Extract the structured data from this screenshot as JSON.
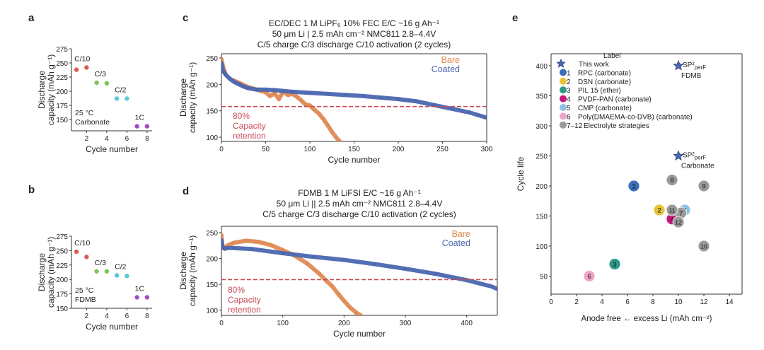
{
  "colors": {
    "bare": "#e08a55",
    "coated": "#4a67b0",
    "ref": "#c74a55",
    "ink": "#222222",
    "axis": "#333333",
    "c10": "#e05a4f",
    "c3": "#7cc45a",
    "c2": "#5cc7d6",
    "c1": "#a44bc7"
  },
  "chart_data": [
    {
      "id": "a",
      "panel_label": "a",
      "type": "scatter",
      "xlabel": "Cycle number",
      "ylabel_line1": "Discharge",
      "ylabel_line2": "capacity (mAh g⁻¹)",
      "xlim": [
        0.5,
        8.5
      ],
      "ylim": [
        130,
        275
      ],
      "xticks": [
        2,
        4,
        6,
        8
      ],
      "yticks": [
        150,
        175,
        200,
        225,
        250,
        275
      ],
      "note_line1": "25 °C",
      "note_line2": "Carbonate",
      "series": [
        {
          "name": "C/10",
          "color": "c10",
          "x": [
            1,
            2
          ],
          "y": [
            238,
            242
          ]
        },
        {
          "name": "C/3",
          "color": "c3",
          "x": [
            3,
            4
          ],
          "y": [
            215,
            214
          ]
        },
        {
          "name": "C/2",
          "color": "c2",
          "x": [
            5,
            6
          ],
          "y": [
            187,
            187
          ]
        },
        {
          "name": "1C",
          "color": "c1",
          "x": [
            7,
            8
          ],
          "y": [
            138,
            138
          ]
        }
      ]
    },
    {
      "id": "b",
      "panel_label": "b",
      "type": "scatter",
      "xlabel": "Cycle number",
      "ylabel_line1": "Discharge",
      "ylabel_line2": "capacity (mAh g⁻¹)",
      "xlim": [
        0.5,
        8.5
      ],
      "ylim": [
        150,
        275
      ],
      "xticks": [
        2,
        4,
        6,
        8
      ],
      "yticks": [
        150,
        175,
        200,
        225,
        250,
        275
      ],
      "note_line1": "25 °C",
      "note_line2": "FDMB",
      "series": [
        {
          "name": "C/10",
          "color": "c10",
          "x": [
            1,
            2
          ],
          "y": [
            248,
            239
          ]
        },
        {
          "name": "C/3",
          "color": "c3",
          "x": [
            3,
            4
          ],
          "y": [
            214,
            214
          ]
        },
        {
          "name": "C/2",
          "color": "c2",
          "x": [
            5,
            6
          ],
          "y": [
            207,
            206
          ]
        },
        {
          "name": "1C",
          "color": "c1",
          "x": [
            7,
            8
          ],
          "y": [
            169,
            169
          ]
        }
      ]
    },
    {
      "id": "c",
      "panel_label": "c",
      "type": "line",
      "title_line1": "EC/DEC 1 M LiPF₆ 10% FEC E/C ~16 g Ah⁻¹",
      "title_line2": "50 μm Li | 2.5 mAh cm⁻² NMC811 2.8–4.4V",
      "title_line3": "C/5 charge C/3 discharge C/10 activation (2 cycles)",
      "xlabel": "Cycle number",
      "ylabel_line1": "Discharge",
      "ylabel_line2": "capacity (mAh g⁻¹)",
      "xlim": [
        0,
        300
      ],
      "ylim": [
        92,
        258
      ],
      "xticks": [
        0,
        50,
        100,
        150,
        200,
        250,
        300
      ],
      "yticks": [
        100,
        150,
        200,
        250
      ],
      "reference_line": 158,
      "ref_line1": "80%",
      "ref_line2": "Capacity",
      "ref_line3": "retention",
      "legend": [
        "Bare",
        "Coated"
      ],
      "series": [
        {
          "name": "Bare",
          "color": "bare",
          "x": [
            0,
            2,
            5,
            10,
            20,
            30,
            40,
            50,
            55,
            60,
            65,
            70,
            75,
            80,
            85,
            90,
            95,
            100,
            105,
            110,
            115,
            120,
            125,
            130,
            135
          ],
          "y": [
            248,
            232,
            218,
            210,
            203,
            195,
            190,
            185,
            178,
            183,
            172,
            187,
            180,
            182,
            177,
            170,
            162,
            160,
            152,
            145,
            135,
            123,
            110,
            99,
            90
          ]
        },
        {
          "name": "Coated",
          "color": "coated",
          "x": [
            0,
            2,
            5,
            10,
            15,
            20,
            25,
            30,
            40,
            50,
            60,
            80,
            100,
            120,
            140,
            160,
            180,
            200,
            220,
            240,
            260,
            280,
            290,
            300
          ],
          "y": [
            240,
            225,
            218,
            210,
            204,
            200,
            196,
            193,
            190,
            190,
            189,
            186,
            184,
            182,
            180,
            178,
            175,
            172,
            168,
            161,
            154,
            147,
            142,
            137
          ]
        }
      ]
    },
    {
      "id": "d",
      "panel_label": "d",
      "type": "line",
      "title_line1": "FDMB 1 M LiFSI E/C ~16 g Ah⁻¹",
      "title_line2": "50 μm Li || 2.5 mAh cm⁻² NMC811 2.8–4.4V",
      "title_line3": "C/5 charge C/3 discharge C/10 activation (2 cycles)",
      "xlabel": "Cycle number",
      "ylabel_line1": "Discharge",
      "ylabel_line2": "capacity (mAh g⁻¹)",
      "xlim": [
        0,
        450
      ],
      "ylim": [
        90,
        262
      ],
      "xticks": [
        0,
        100,
        200,
        300,
        400
      ],
      "yticks": [
        100,
        150,
        200,
        250
      ],
      "reference_line": 159,
      "ref_line1": "80%",
      "ref_line2": "Capacity",
      "ref_line3": "retention",
      "legend": [
        "Bare",
        "Coated"
      ],
      "series": [
        {
          "name": "Bare",
          "color": "bare",
          "x": [
            0,
            2,
            5,
            10,
            20,
            40,
            60,
            80,
            100,
            120,
            140,
            160,
            170,
            180,
            190,
            200,
            210,
            220,
            230
          ],
          "y": [
            245,
            222,
            218,
            225,
            230,
            234,
            232,
            226,
            216,
            205,
            190,
            170,
            158,
            147,
            132,
            118,
            105,
            95,
            88
          ]
        },
        {
          "name": "Coated",
          "color": "coated",
          "x": [
            0,
            2,
            5,
            10,
            20,
            50,
            100,
            150,
            200,
            250,
            300,
            350,
            400,
            420,
            440,
            450
          ],
          "y": [
            235,
            222,
            219,
            220,
            220,
            218,
            210,
            203,
            197,
            189,
            180,
            170,
            158,
            152,
            146,
            141
          ]
        }
      ]
    },
    {
      "id": "e",
      "panel_label": "e",
      "type": "scatter",
      "xlabel": "Anode free ← excess Li (mAh cm⁻²)",
      "ylabel": "Cycle life",
      "xlim": [
        0,
        15
      ],
      "ylim": [
        20,
        420
      ],
      "xticks": [
        0,
        2,
        4,
        6,
        8,
        10,
        12,
        14
      ],
      "yticks": [
        50,
        100,
        150,
        200,
        250,
        300,
        350,
        400
      ],
      "legend_title": "Label",
      "legend": [
        {
          "marker": "star",
          "number": "",
          "label": "This work",
          "color": "#4a67b0"
        },
        {
          "marker": "circle",
          "number": "1",
          "label": "RPC (carbonate)",
          "color": "#3a6fb8"
        },
        {
          "marker": "circle",
          "number": "2",
          "label": "DSN (carbonate)",
          "color": "#e8c33a"
        },
        {
          "marker": "circle",
          "number": "3",
          "label": "PIL 15 (ether)",
          "color": "#2e9a8a"
        },
        {
          "marker": "circle",
          "number": "4",
          "label": "PVDF-PAN (carbonate)",
          "color": "#c8157a"
        },
        {
          "marker": "circle",
          "number": "5",
          "label": "CMP (carbonate)",
          "color": "#8dc3ea"
        },
        {
          "marker": "circle",
          "number": "6",
          "label": "Poly(DMAEMA-co-DVB) (carbonate)",
          "color": "#f0a3c8"
        },
        {
          "marker": "circle",
          "number": "7–12",
          "label": "Electrolyte strategies",
          "color": "#9a9a9a"
        }
      ],
      "stars": [
        {
          "x": 10,
          "y": 400,
          "label_main": "SP²",
          "label_sub": "perF",
          "label_after": "FDMB"
        },
        {
          "x": 10,
          "y": 250,
          "label_main": "SP²",
          "label_sub": "perF",
          "label_after": "Carbonate"
        }
      ],
      "points": [
        {
          "label": "1",
          "x": 6.5,
          "y": 200,
          "color": "#3a6fb8"
        },
        {
          "label": "2",
          "x": 8.5,
          "y": 160,
          "color": "#e8c33a"
        },
        {
          "label": "3",
          "x": 5,
          "y": 70,
          "color": "#2e9a8a"
        },
        {
          "label": "4",
          "x": 9.5,
          "y": 145,
          "color": "#c8157a"
        },
        {
          "label": "5",
          "x": 10.5,
          "y": 160,
          "color": "#8dc3ea"
        },
        {
          "label": "6",
          "x": 3,
          "y": 50,
          "color": "#f0a3c8"
        },
        {
          "label": "7",
          "x": 10.2,
          "y": 155,
          "color": "#9a9a9a"
        },
        {
          "label": "8",
          "x": 9.5,
          "y": 210,
          "color": "#9a9a9a"
        },
        {
          "label": "9",
          "x": 12,
          "y": 200,
          "color": "#9a9a9a"
        },
        {
          "label": "10",
          "x": 12,
          "y": 100,
          "color": "#9a9a9a"
        },
        {
          "label": "11",
          "x": 9.5,
          "y": 160,
          "color": "#9a9a9a"
        },
        {
          "label": "12",
          "x": 10,
          "y": 140,
          "color": "#9a9a9a"
        }
      ]
    }
  ]
}
